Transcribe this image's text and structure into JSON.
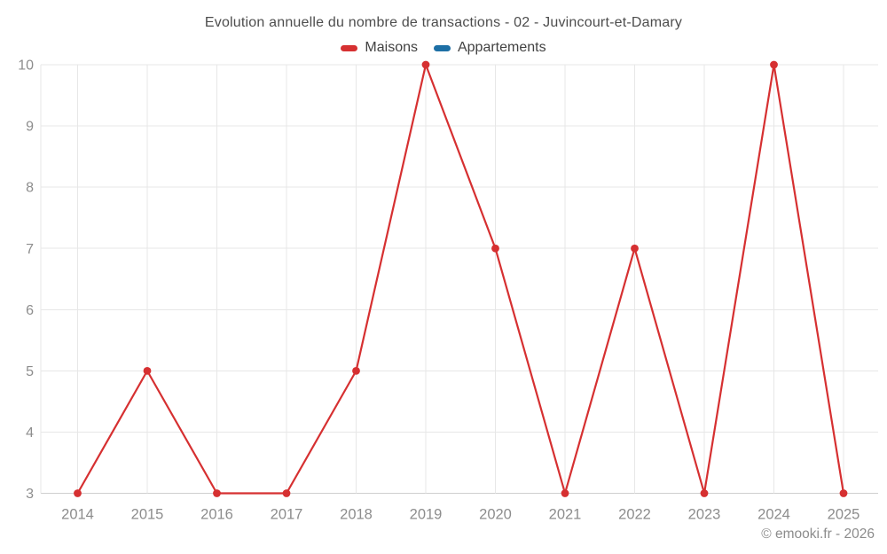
{
  "chart_data": {
    "type": "line",
    "title": "Evolution annuelle du nombre de transactions - 02 - Juvincourt-et-Damary",
    "footer": "© emooki.fr - 2026",
    "x": [
      2014,
      2015,
      2016,
      2017,
      2018,
      2019,
      2020,
      2021,
      2022,
      2023,
      2024,
      2025
    ],
    "series": [
      {
        "name": "Maisons",
        "color": "#d63031",
        "values": [
          3,
          5,
          3,
          3,
          5,
          10,
          7,
          3,
          7,
          3,
          10,
          3
        ]
      },
      {
        "name": "Appartements",
        "color": "#1d6fa5",
        "values": []
      }
    ],
    "xlabel": "",
    "ylabel": "",
    "ylim": [
      3,
      10
    ],
    "yticks": [
      3,
      4,
      5,
      6,
      7,
      8,
      9,
      10
    ],
    "grid": true,
    "legend_position": "top",
    "style": {
      "grid_color": "#e7e7e7",
      "axis_color": "#cfcfcf",
      "tick_text_color": "#8d8d8d",
      "marker_radius": 4.4,
      "line_width": 2.2
    }
  }
}
